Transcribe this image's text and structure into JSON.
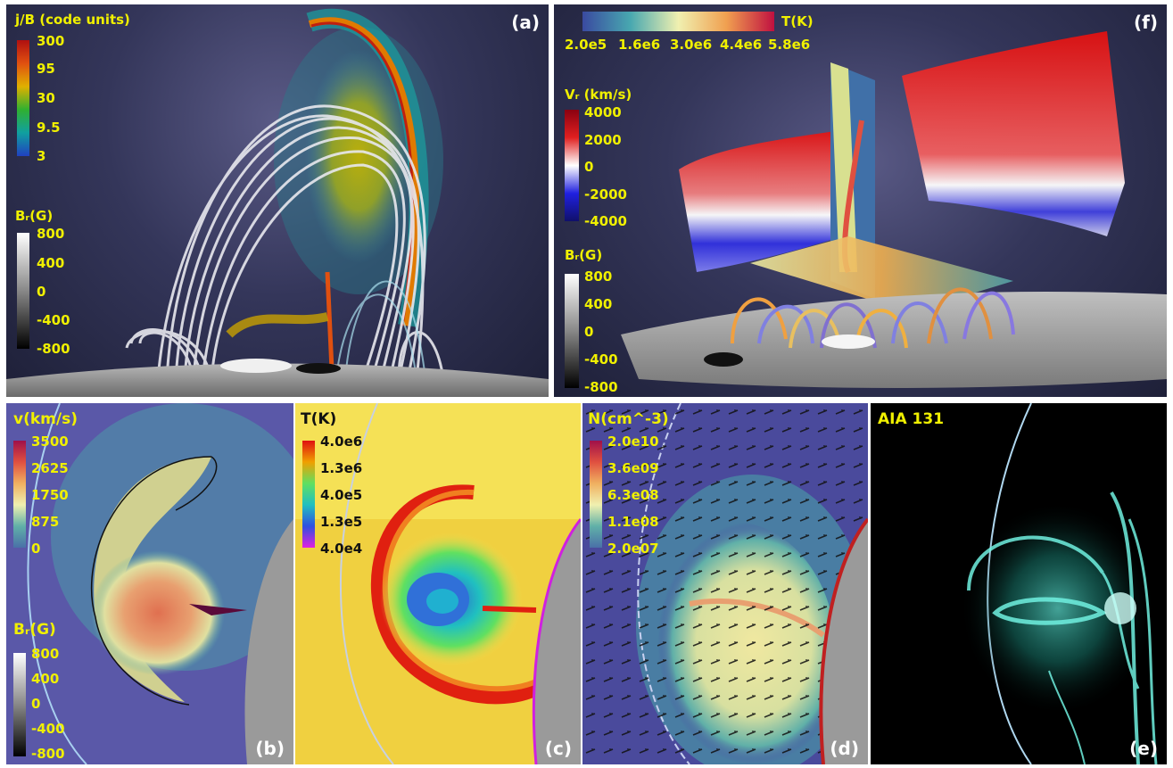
{
  "panels": {
    "a": {
      "letter": "(a)",
      "scale1": {
        "title": "j/B (code units)",
        "ticks": [
          "300",
          "95",
          "30",
          "9.5",
          "3"
        ]
      },
      "scale2": {
        "title": "Bᵣ(G)",
        "ticks": [
          "800",
          "400",
          "0",
          "-400",
          "-800"
        ]
      }
    },
    "f": {
      "letter": "(f)",
      "tscale": {
        "title": "T(K)",
        "ticks": [
          "2.0e5",
          "1.6e6",
          "3.0e6",
          "4.4e6",
          "5.8e6"
        ]
      },
      "vscale": {
        "title": "Vᵣ (km/s)",
        "ticks": [
          "4000",
          "2000",
          "0",
          "-2000",
          "-4000"
        ]
      },
      "bscale": {
        "title": "Bᵣ(G)",
        "ticks": [
          "800",
          "400",
          "0",
          "-400",
          "-800"
        ]
      }
    },
    "b": {
      "letter": "(b)",
      "vscale": {
        "title": "v(km/s)",
        "ticks": [
          "3500",
          "2625",
          "1750",
          "875",
          "0"
        ]
      },
      "bscale": {
        "title": "Bᵣ(G)",
        "ticks": [
          "800",
          "400",
          "0",
          "-400",
          "-800"
        ]
      }
    },
    "c": {
      "letter": "(c)",
      "tscale": {
        "title": "T(K)",
        "ticks": [
          "4.0e6",
          "1.3e6",
          "4.0e5",
          "1.3e5",
          "4.0e4"
        ]
      }
    },
    "d": {
      "letter": "(d)",
      "nscale": {
        "title": "N(cm^-3)",
        "ticks": [
          "2.0e10",
          "3.6e09",
          "6.3e08",
          "1.1e08",
          "2.0e07"
        ]
      }
    },
    "e": {
      "letter": "(e)",
      "title": "AIA 131"
    }
  }
}
